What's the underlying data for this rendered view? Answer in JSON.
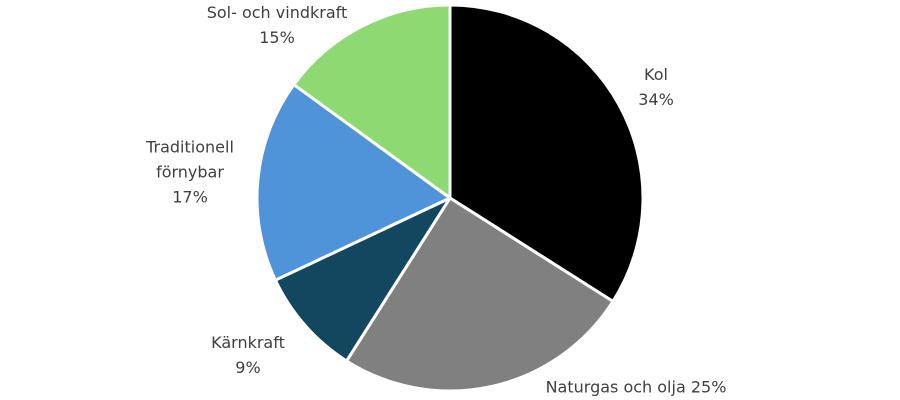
{
  "chart_data": {
    "type": "pie",
    "categories": [
      "Kol",
      "Naturgas och olja",
      "Kärnkraft",
      "Traditionell förnybar",
      "Sol- och vindkraft"
    ],
    "values": [
      34,
      25,
      9,
      17,
      15
    ],
    "value_labels": [
      "34%",
      "25%",
      "9%",
      "17%",
      "15%"
    ],
    "colors": [
      "#000000",
      "#808080",
      "#12475f",
      "#4f94d9",
      "#8fd973"
    ]
  }
}
